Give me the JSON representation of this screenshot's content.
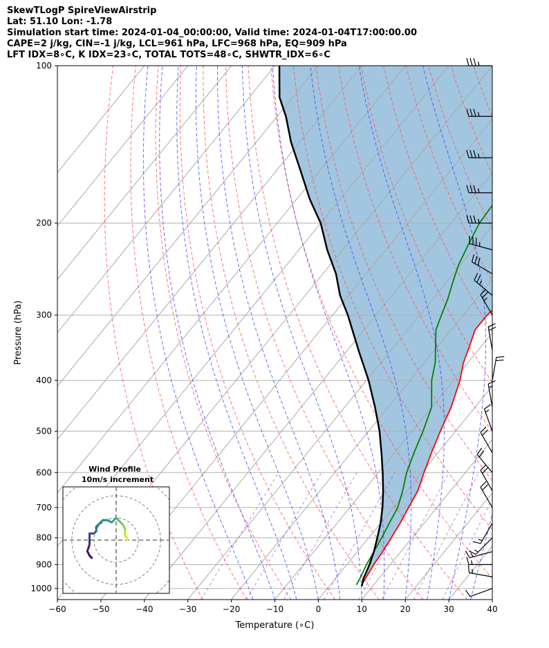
{
  "header": {
    "lines": [
      "SkewTLogP SpireViewAirstrip",
      "Lat: 51.10   Lon: -1.78",
      "Simulation start time: 2024-01-04_00:00:00, Valid time: 2024-01-04T17:00:00.00",
      "CAPE=2 j/kg, CIN=-1 j/kg, LCL=961 hPa, LFC=968 hPa, EQ=909 hPa",
      "LFT IDX=8∘C, K IDX=23∘C, TOTAL TOTS=48∘C, SHWTR_IDX=6∘C"
    ]
  },
  "chart_data": {
    "type": "line",
    "title": "SkewTLogP SpireViewAirstrip",
    "xlabel": "Temperature (∘C)",
    "ylabel": "Pressure (hPa)",
    "xlim": [
      -60,
      40
    ],
    "ylim": [
      1050,
      100
    ],
    "x_ticks": [
      -60,
      -50,
      -40,
      -30,
      -20,
      -10,
      0,
      10,
      20,
      30,
      40
    ],
    "y_ticks": [
      1000,
      900,
      800,
      700,
      600,
      500,
      400,
      300,
      200,
      100
    ],
    "series": [
      {
        "name": "Temperature",
        "color": "#ff0000",
        "points": [
          [
            7.2,
            984
          ],
          [
            6.8,
            950
          ],
          [
            6.2,
            900
          ],
          [
            5.8,
            850
          ],
          [
            5.2,
            800
          ],
          [
            4.5,
            750
          ],
          [
            3.5,
            700
          ],
          [
            2.5,
            650
          ],
          [
            0.5,
            600
          ],
          [
            -1.5,
            550
          ],
          [
            -3.5,
            500
          ],
          [
            -5.5,
            450
          ],
          [
            -8.5,
            400
          ],
          [
            -11.0,
            370
          ],
          [
            -13.0,
            340
          ],
          [
            -14.5,
            320
          ],
          [
            -14.5,
            300
          ],
          [
            -13.5,
            280
          ],
          [
            -12.0,
            260
          ],
          [
            -9.5,
            240
          ],
          [
            -6.5,
            220
          ],
          [
            -3.0,
            200
          ],
          [
            1.0,
            180
          ],
          [
            5.0,
            160
          ],
          [
            8.5,
            140
          ],
          [
            11.0,
            125
          ],
          [
            13.0,
            115
          ],
          [
            13.8,
            100
          ]
        ]
      },
      {
        "name": "Dewpoint",
        "color": "#008000",
        "points": [
          [
            6.0,
            984
          ],
          [
            5.5,
            950
          ],
          [
            4.5,
            900
          ],
          [
            3.8,
            850
          ],
          [
            3.0,
            800
          ],
          [
            2.0,
            750
          ],
          [
            1.0,
            700
          ],
          [
            -1.0,
            650
          ],
          [
            -3.5,
            600
          ],
          [
            -5.5,
            550
          ],
          [
            -7.5,
            500
          ],
          [
            -10.0,
            450
          ],
          [
            -15.0,
            400
          ],
          [
            -17.5,
            370
          ],
          [
            -21.0,
            340
          ],
          [
            -23.5,
            320
          ],
          [
            -25.0,
            300
          ],
          [
            -26.5,
            280
          ],
          [
            -28.5,
            260
          ],
          [
            -30.5,
            240
          ],
          [
            -32.0,
            220
          ],
          [
            -33.5,
            200
          ],
          [
            -34.0,
            180
          ],
          [
            -32.0,
            160
          ],
          [
            -28.0,
            140
          ],
          [
            -24.0,
            125
          ],
          [
            -21.0,
            115
          ],
          [
            -17.0,
            100
          ]
        ]
      },
      {
        "name": "Parcel",
        "color": "#000000",
        "points": [
          [
            7.5,
            990
          ],
          [
            6.5,
            960
          ],
          [
            5.2,
            900
          ],
          [
            3.8,
            850
          ],
          [
            2.0,
            800
          ],
          [
            0.0,
            750
          ],
          [
            -2.5,
            700
          ],
          [
            -5.5,
            650
          ],
          [
            -9.0,
            600
          ],
          [
            -13.0,
            550
          ],
          [
            -17.5,
            500
          ],
          [
            -23.0,
            450
          ],
          [
            -29.5,
            400
          ],
          [
            -37.5,
            350
          ],
          [
            -46.5,
            300
          ],
          [
            -52.0,
            275
          ],
          [
            -57.0,
            250
          ],
          [
            -63.5,
            225
          ],
          [
            -70.0,
            200
          ],
          [
            -77.0,
            180
          ],
          [
            -84.0,
            160
          ],
          [
            -92.0,
            140
          ],
          [
            -98.0,
            125
          ],
          [
            -103.0,
            115
          ],
          [
            -109.0,
            100
          ]
        ]
      }
    ],
    "shaded_region": {
      "name": "CAPE/CIN area",
      "color": "#a2c6e0",
      "between": [
        "Temperature",
        "Parcel"
      ]
    },
    "isotherms": [
      -140,
      -130,
      -120,
      -110,
      -100,
      -90,
      -80,
      -70,
      -60,
      -50,
      -40,
      -30,
      -20,
      -10,
      0,
      10,
      20,
      30,
      40
    ],
    "dry_adiabats_theta_c": [
      -30,
      -20,
      -10,
      0,
      10,
      20,
      30,
      40,
      50,
      60,
      70,
      80,
      90,
      100,
      110,
      120,
      130,
      140,
      150
    ],
    "moist_adiabats_start_c": [
      -15,
      -10,
      -5,
      0,
      5,
      10,
      15,
      20,
      25,
      30,
      35,
      40
    ],
    "mixing_ratio_g_per_kg": [
      0.4,
      1,
      2,
      4,
      7,
      10,
      16,
      24
    ],
    "wind_barbs": [
      {
        "p": 100,
        "speed": 35,
        "dir": 270
      },
      {
        "p": 125,
        "speed": 35,
        "dir": 270
      },
      {
        "p": 150,
        "speed": 35,
        "dir": 270
      },
      {
        "p": 175,
        "speed": 35,
        "dir": 270
      },
      {
        "p": 200,
        "speed": 35,
        "dir": 270
      },
      {
        "p": 225,
        "speed": 35,
        "dir": 285
      },
      {
        "p": 250,
        "speed": 30,
        "dir": 300
      },
      {
        "p": 275,
        "speed": 25,
        "dir": 310
      },
      {
        "p": 300,
        "speed": 25,
        "dir": 330
      },
      {
        "p": 350,
        "speed": 20,
        "dir": 350
      },
      {
        "p": 400,
        "speed": 20,
        "dir": 10
      },
      {
        "p": 450,
        "speed": 15,
        "dir": 350
      },
      {
        "p": 500,
        "speed": 15,
        "dir": 340
      },
      {
        "p": 550,
        "speed": 20,
        "dir": 330
      },
      {
        "p": 600,
        "speed": 20,
        "dir": 320
      },
      {
        "p": 650,
        "speed": 20,
        "dir": 330
      },
      {
        "p": 700,
        "speed": 20,
        "dir": 330
      },
      {
        "p": 750,
        "speed": 15,
        "dir": 210
      },
      {
        "p": 800,
        "speed": 15,
        "dir": 225
      },
      {
        "p": 850,
        "speed": 15,
        "dir": 255
      },
      {
        "p": 900,
        "speed": 15,
        "dir": 270
      },
      {
        "p": 950,
        "speed": 15,
        "dir": 280
      },
      {
        "p": 1000,
        "speed": 10,
        "dir": 250
      }
    ],
    "inset": {
      "type": "hodograph",
      "title": "Wind Profile",
      "subtitle": "10m/s increment",
      "ring_step_ms": 10,
      "range_ms": 24,
      "points": [
        [
          -11,
          -8
        ],
        [
          -12,
          -7
        ],
        [
          -13,
          -5
        ],
        [
          -12,
          -2
        ],
        [
          -12,
          1
        ],
        [
          -12,
          3
        ],
        [
          -10,
          3
        ],
        [
          -9,
          4
        ],
        [
          -9,
          6
        ],
        [
          -8,
          7
        ],
        [
          -6,
          9
        ],
        [
          -4,
          9
        ],
        [
          -2,
          8
        ],
        [
          -1,
          9
        ],
        [
          0,
          10
        ],
        [
          1,
          9
        ],
        [
          2,
          8
        ],
        [
          3,
          7
        ],
        [
          4,
          5
        ],
        [
          4,
          4
        ],
        [
          4,
          2
        ],
        [
          5,
          1
        ],
        [
          5,
          0
        ]
      ]
    }
  }
}
